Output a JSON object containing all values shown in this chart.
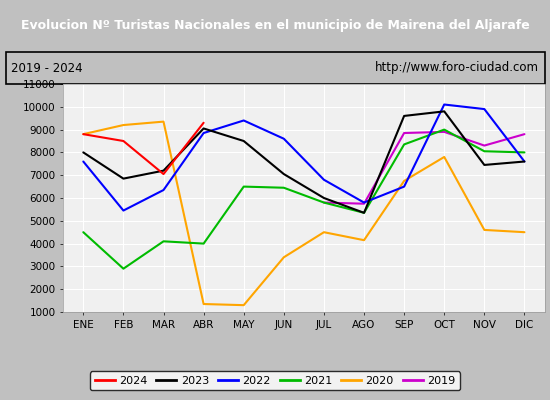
{
  "title": "Evolucion Nº Turistas Nacionales en el municipio de Mairena del Aljarafe",
  "subtitle_left": "2019 - 2024",
  "subtitle_right": "http://www.foro-ciudad.com",
  "months": [
    "ENE",
    "FEB",
    "MAR",
    "ABR",
    "MAY",
    "JUN",
    "JUL",
    "AGO",
    "SEP",
    "OCT",
    "NOV",
    "DIC"
  ],
  "series": {
    "2024": {
      "color": "#ff0000",
      "data": [
        8800,
        8500,
        7050,
        9300,
        null,
        null,
        null,
        null,
        null,
        null,
        null,
        null
      ]
    },
    "2023": {
      "color": "#000000",
      "data": [
        8000,
        6850,
        7200,
        9050,
        8500,
        7050,
        6000,
        5350,
        9600,
        9800,
        7450,
        7600
      ]
    },
    "2022": {
      "color": "#0000ff",
      "data": [
        7600,
        5450,
        6350,
        8850,
        9400,
        8600,
        6800,
        5800,
        6500,
        10100,
        9900,
        7600
      ]
    },
    "2021": {
      "color": "#00bb00",
      "data": [
        4500,
        2900,
        4100,
        4000,
        6500,
        6450,
        5800,
        5350,
        8350,
        9000,
        8050,
        8000
      ]
    },
    "2020": {
      "color": "#ffa500",
      "data": [
        8800,
        9200,
        9350,
        1350,
        1300,
        3400,
        4500,
        4150,
        6750,
        7800,
        4600,
        4500
      ]
    },
    "2019": {
      "color": "#cc00cc",
      "data": [
        null,
        null,
        null,
        null,
        null,
        null,
        5800,
        5750,
        8850,
        8900,
        8300,
        8800
      ]
    }
  },
  "ylim": [
    1000,
    11000
  ],
  "yticks": [
    1000,
    2000,
    3000,
    4000,
    5000,
    6000,
    7000,
    8000,
    9000,
    10000,
    11000
  ],
  "title_bg": "#4472c4",
  "title_color": "#ffffff",
  "subtitle_bg": "#e0e0e0",
  "plot_bg": "#f0f0f0",
  "grid_color": "#ffffff",
  "outer_bg": "#c0c0c0",
  "legend_order": [
    "2024",
    "2023",
    "2022",
    "2021",
    "2020",
    "2019"
  ]
}
